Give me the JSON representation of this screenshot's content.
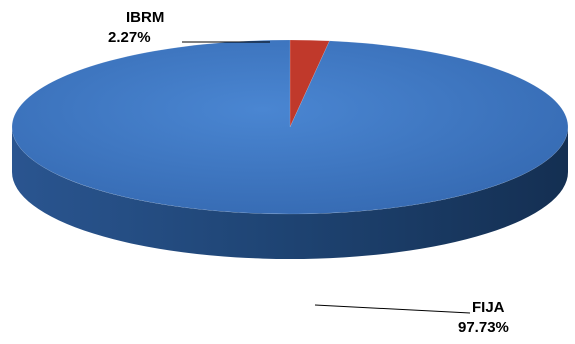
{
  "chart_data": {
    "type": "pie",
    "style": "3d",
    "title": "",
    "slices": [
      {
        "label": "IBRM",
        "value": 2.27,
        "value_label": "2.27%",
        "color": "#C0392B"
      },
      {
        "label": "FIJA",
        "value": 97.73,
        "value_label": "97.73%",
        "color": "#3A78C8"
      }
    ],
    "legend": "none"
  }
}
